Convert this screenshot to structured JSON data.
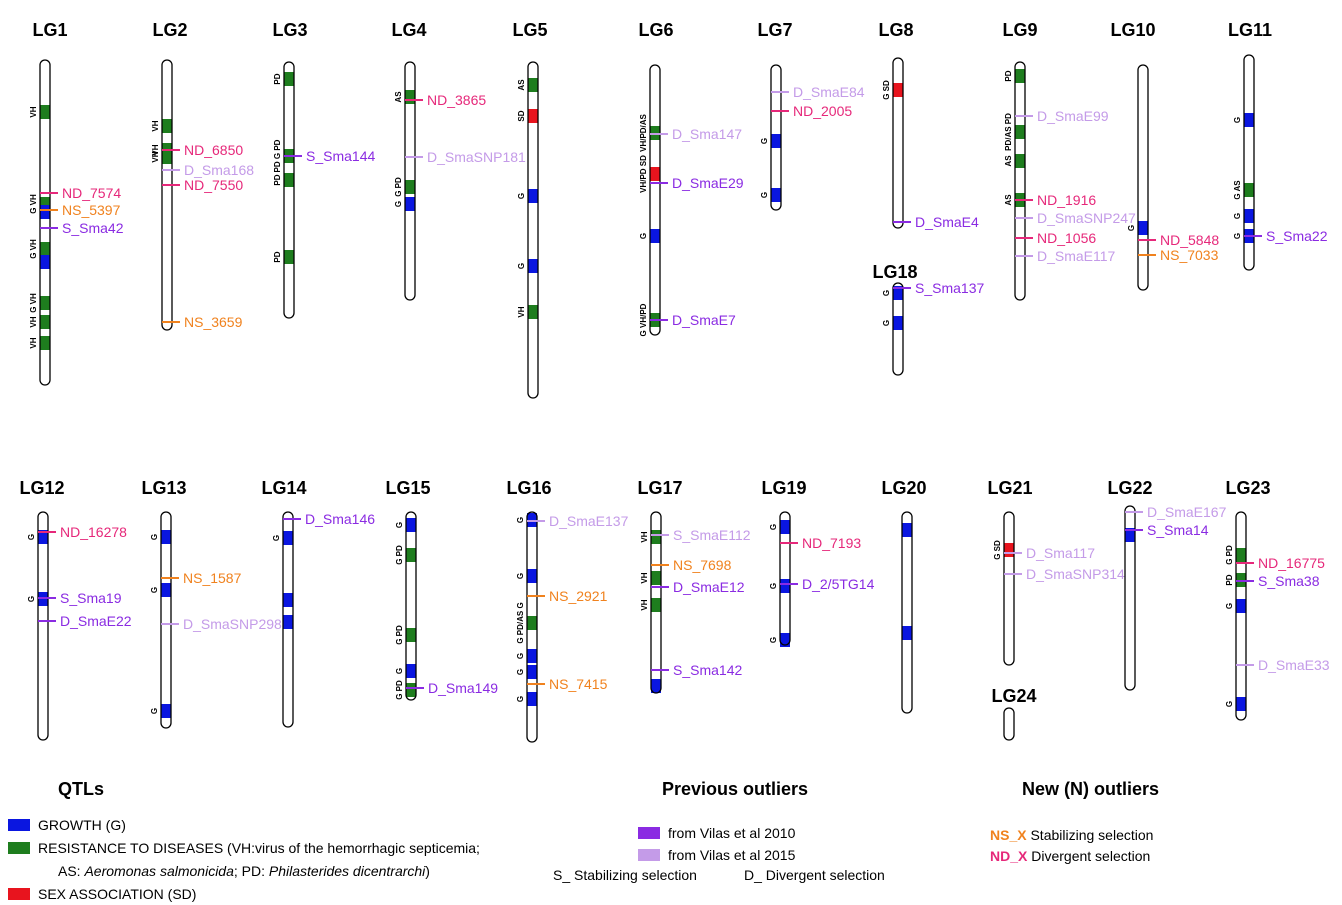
{
  "colors": {
    "growth": "#0a16e0",
    "disease": "#1e7d1e",
    "sex": "#e8141e",
    "prev2010": "#8a2be2",
    "prev2015": "#c49be8",
    "ns": "#f0821e",
    "nd": "#e6287a"
  },
  "chromosomes": [
    {
      "label": "LG1",
      "qtls": [
        {
          "c": "green",
          "t": "VH"
        },
        {
          "c": "green",
          "t": "G VH"
        },
        {
          "c": "blue",
          "t": ""
        },
        {
          "c": "green",
          "t": "G VH"
        },
        {
          "c": "blue",
          "t": ""
        },
        {
          "c": "green",
          "t": "G VH"
        },
        {
          "c": "green",
          "t": "VH"
        },
        {
          "c": "green",
          "t": "VH"
        }
      ],
      "markers": [
        {
          "n": "ND_7574",
          "k": "nd"
        },
        {
          "n": "NS_5397",
          "k": "ns"
        },
        {
          "n": "S_Sma42",
          "k": "prev2010"
        }
      ]
    },
    {
      "label": "LG2",
      "qtls": [
        {
          "c": "green",
          "t": "VH"
        },
        {
          "c": "green",
          "t": "VH"
        },
        {
          "c": "green",
          "t": "VH"
        }
      ],
      "markers": [
        {
          "n": "ND_6850",
          "k": "nd"
        },
        {
          "n": "D_Sma168",
          "k": "prev2015"
        },
        {
          "n": "ND_7550",
          "k": "nd"
        },
        {
          "n": "NS_3659",
          "k": "ns"
        }
      ]
    },
    {
      "label": "LG3",
      "qtls": [
        {
          "c": "green",
          "t": "PD"
        },
        {
          "c": "green",
          "t": "PD G PD"
        },
        {
          "c": "green",
          "t": "PD"
        },
        {
          "c": "green",
          "t": "PD"
        }
      ],
      "markers": [
        {
          "n": "S_Sma144",
          "k": "prev2010"
        }
      ]
    },
    {
      "label": "LG4",
      "qtls": [
        {
          "c": "green",
          "t": "AS"
        },
        {
          "c": "green",
          "t": "G PD"
        },
        {
          "c": "blue",
          "t": "G"
        }
      ],
      "markers": [
        {
          "n": "ND_3865",
          "k": "nd"
        },
        {
          "n": "D_SmaSNP181",
          "k": "prev2015"
        }
      ]
    },
    {
      "label": "LG5",
      "qtls": [
        {
          "c": "green",
          "t": "AS"
        },
        {
          "c": "red",
          "t": "SD"
        },
        {
          "c": "blue",
          "t": "G"
        },
        {
          "c": "blue",
          "t": "G"
        },
        {
          "c": "green",
          "t": "VH"
        },
        {
          "c": "blue",
          "t": "G"
        }
      ],
      "markers": []
    },
    {
      "label": "LG6",
      "qtls": [
        {
          "c": "green",
          "t": "VH/PD/AS"
        },
        {
          "c": "red",
          "t": "VH/PD SD"
        },
        {
          "c": "blue",
          "t": "G"
        },
        {
          "c": "green",
          "t": "G VH/PD"
        }
      ],
      "markers": [
        {
          "n": "D_Sma147",
          "k": "prev2015"
        },
        {
          "n": "D_SmaE29",
          "k": "prev2010"
        },
        {
          "n": "D_SmaE7",
          "k": "prev2010"
        }
      ]
    },
    {
      "label": "LG7",
      "qtls": [
        {
          "c": "blue",
          "t": "G"
        },
        {
          "c": "blue",
          "t": "G"
        }
      ],
      "markers": [
        {
          "n": "D_SmaE84",
          "k": "prev2015"
        },
        {
          "n": "ND_2005",
          "k": "nd"
        }
      ]
    },
    {
      "label": "LG8",
      "qtls": [
        {
          "c": "red",
          "t": "G SD"
        }
      ],
      "markers": [
        {
          "n": "D_SmaE4",
          "k": "prev2010"
        }
      ]
    },
    {
      "label": "LG9",
      "qtls": [
        {
          "c": "green",
          "t": "PD"
        },
        {
          "c": "green",
          "t": "PD/AS PD"
        },
        {
          "c": "green",
          "t": "AS"
        },
        {
          "c": "green",
          "t": "AS"
        }
      ],
      "markers": [
        {
          "n": "D_SmaE99",
          "k": "prev2015"
        },
        {
          "n": "ND_1916",
          "k": "nd"
        },
        {
          "n": "D_SmaSNP247",
          "k": "prev2015"
        },
        {
          "n": "ND_1056",
          "k": "nd"
        },
        {
          "n": "D_SmaE117",
          "k": "prev2015"
        }
      ]
    },
    {
      "label": "LG10",
      "qtls": [
        {
          "c": "blue",
          "t": "G"
        }
      ],
      "markers": [
        {
          "n": "ND_5848",
          "k": "nd"
        },
        {
          "n": "NS_7033",
          "k": "ns"
        }
      ]
    },
    {
      "label": "LG11",
      "qtls": [
        {
          "c": "blue",
          "t": "G"
        },
        {
          "c": "green",
          "t": "G AS"
        },
        {
          "c": "blue",
          "t": "G"
        },
        {
          "c": "blue",
          "t": "G"
        }
      ],
      "markers": [
        {
          "n": "S_Sma22",
          "k": "prev2010"
        }
      ]
    },
    {
      "label": "LG18",
      "qtls": [
        {
          "c": "blue",
          "t": "G"
        },
        {
          "c": "blue",
          "t": "G"
        }
      ],
      "markers": [
        {
          "n": "S_Sma137",
          "k": "prev2010"
        }
      ]
    },
    {
      "label": "LG12",
      "qtls": [
        {
          "c": "blue",
          "t": "G"
        },
        {
          "c": "blue",
          "t": "G"
        }
      ],
      "markers": [
        {
          "n": "ND_16278",
          "k": "nd"
        },
        {
          "n": "S_Sma19",
          "k": "prev2010"
        },
        {
          "n": "D_SmaE22",
          "k": "prev2010"
        }
      ]
    },
    {
      "label": "LG13",
      "qtls": [
        {
          "c": "blue",
          "t": "G"
        },
        {
          "c": "blue",
          "t": "G"
        },
        {
          "c": "blue",
          "t": "G"
        }
      ],
      "markers": [
        {
          "n": "NS_1587",
          "k": "ns"
        },
        {
          "n": "D_SmaSNP298",
          "k": "prev2015"
        }
      ]
    },
    {
      "label": "LG14",
      "qtls": [
        {
          "c": "blue",
          "t": "G"
        },
        {
          "c": "blue",
          "t": ""
        },
        {
          "c": "blue",
          "t": ""
        }
      ],
      "markers": [
        {
          "n": "D_Sma146",
          "k": "prev2010"
        }
      ]
    },
    {
      "label": "LG15",
      "qtls": [
        {
          "c": "blue",
          "t": "G"
        },
        {
          "c": "green",
          "t": "G PD"
        },
        {
          "c": "green",
          "t": "G PD"
        },
        {
          "c": "blue",
          "t": "G"
        },
        {
          "c": "green",
          "t": "G PD"
        }
      ],
      "markers": [
        {
          "n": "D_Sma149",
          "k": "prev2010"
        }
      ]
    },
    {
      "label": "LG16",
      "qtls": [
        {
          "c": "blue",
          "t": "G"
        },
        {
          "c": "blue",
          "t": "G"
        },
        {
          "c": "green",
          "t": "G PD/AS G"
        },
        {
          "c": "blue",
          "t": "G"
        },
        {
          "c": "blue",
          "t": "G"
        },
        {
          "c": "blue",
          "t": "G"
        }
      ],
      "markers": [
        {
          "n": "D_SmaE137",
          "k": "prev2015"
        },
        {
          "n": "NS_2921",
          "k": "ns"
        },
        {
          "n": "NS_7415",
          "k": "ns"
        }
      ]
    },
    {
      "label": "LG17",
      "qtls": [
        {
          "c": "green",
          "t": "VH"
        },
        {
          "c": "green",
          "t": "VH"
        },
        {
          "c": "green",
          "t": "VH"
        },
        {
          "c": "blue",
          "t": ""
        }
      ],
      "markers": [
        {
          "n": "S_SmaE112",
          "k": "prev2015"
        },
        {
          "n": "NS_7698",
          "k": "ns"
        },
        {
          "n": "D_SmaE12",
          "k": "prev2010"
        },
        {
          "n": "S_Sma142",
          "k": "prev2010"
        }
      ]
    },
    {
      "label": "LG19",
      "qtls": [
        {
          "c": "blue",
          "t": "G"
        },
        {
          "c": "blue",
          "t": "G"
        },
        {
          "c": "blue",
          "t": "G"
        }
      ],
      "markers": [
        {
          "n": "ND_7193",
          "k": "nd"
        },
        {
          "n": "D_2/5TG14",
          "k": "prev2010"
        }
      ]
    },
    {
      "label": "LG20",
      "qtls": [
        {
          "c": "blue",
          "t": ""
        },
        {
          "c": "blue",
          "t": ""
        }
      ],
      "markers": []
    },
    {
      "label": "LG21",
      "qtls": [
        {
          "c": "red",
          "t": "G SD"
        }
      ],
      "markers": [
        {
          "n": "D_Sma117",
          "k": "prev2015"
        },
        {
          "n": "D_SmaSNP314",
          "k": "prev2015"
        }
      ]
    },
    {
      "label": "LG22",
      "qtls": [
        {
          "c": "blue",
          "t": ""
        }
      ],
      "markers": [
        {
          "n": "D_SmaE167",
          "k": "prev2015"
        },
        {
          "n": "S_Sma14",
          "k": "prev2010"
        }
      ]
    },
    {
      "label": "LG23",
      "qtls": [
        {
          "c": "green",
          "t": "G PD"
        },
        {
          "c": "green",
          "t": "PD"
        },
        {
          "c": "blue",
          "t": "G"
        },
        {
          "c": "blue",
          "t": "G"
        }
      ],
      "markers": [
        {
          "n": "ND_16775",
          "k": "nd"
        },
        {
          "n": "S_Sma38",
          "k": "prev2010"
        },
        {
          "n": "D_SmaE33",
          "k": "prev2015"
        }
      ]
    },
    {
      "label": "LG24",
      "qtls": [],
      "markers": []
    }
  ],
  "legend": {
    "qtl_title": "QTLs",
    "growth": "GROWTH (G)",
    "disease_1": "RESISTANCE TO DISEASES (VH:virus of the hemorrhagic septicemia;",
    "disease_2a": "AS: ",
    "disease_2b": "Aeromonas salmonicida",
    "disease_2c": "; PD: ",
    "disease_2d": "Philasterides dicentrarchi",
    "disease_2e": ")",
    "sex": "SEX ASSOCIATION (SD)",
    "prev_title": "Previous outliers",
    "prev_2010": "from Vilas et al 2010",
    "prev_2015": "from Vilas et al 2015",
    "prev_s": "S_ Stabilizing selection",
    "prev_d": "D_ Divergent selection",
    "new_title": "New (N) outliers",
    "ns_prefix": "NS_X",
    "ns_text": " Stabilizing selection",
    "nd_prefix": "ND_X",
    "nd_text": " Divergent selection"
  }
}
